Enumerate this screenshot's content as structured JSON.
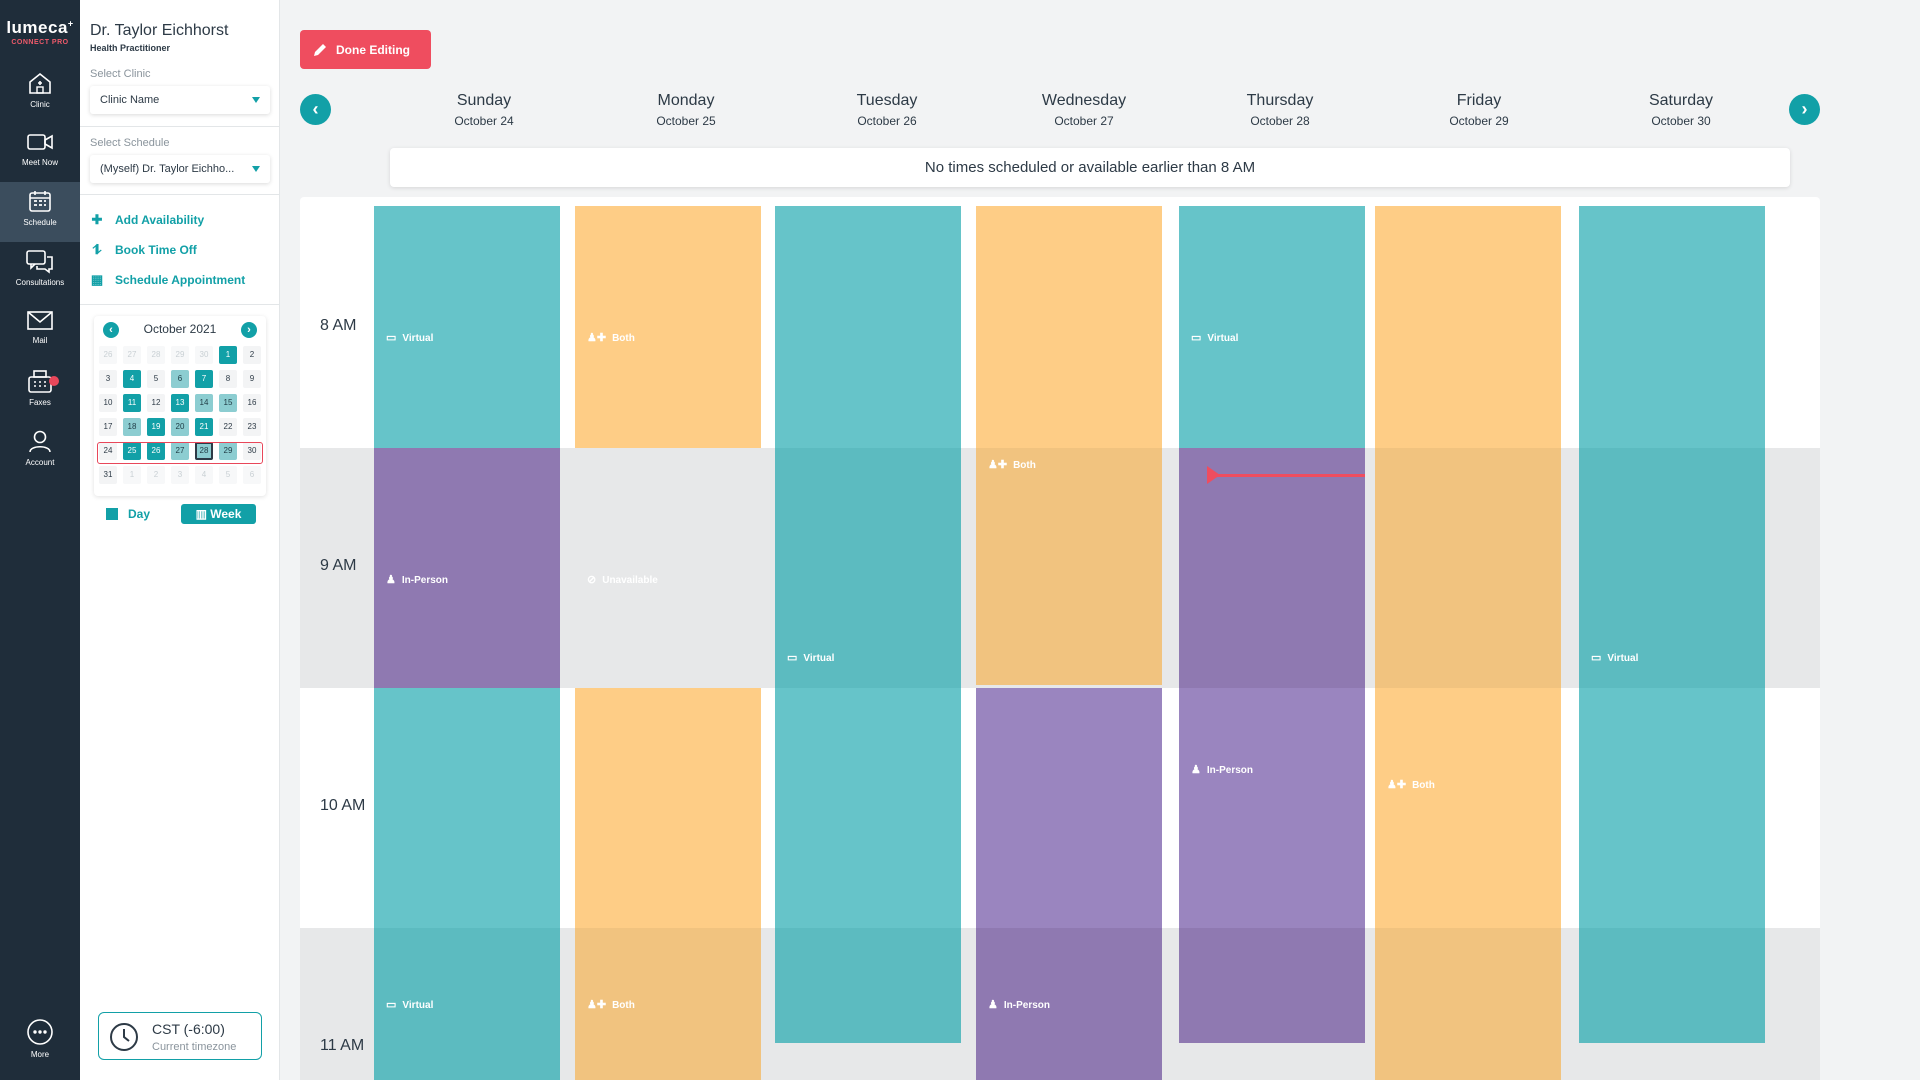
{
  "brand": {
    "name": "lumeca",
    "mark": "+",
    "sub": "CONNECT PRO"
  },
  "rail": [
    {
      "label": "Clinic",
      "icon": "clinic-icon"
    },
    {
      "label": "Meet Now",
      "icon": "video-icon"
    },
    {
      "label": "Schedule",
      "icon": "calendar-icon"
    },
    {
      "label": "Consultations",
      "icon": "chat-icon"
    },
    {
      "label": "Mail",
      "icon": "mail-icon"
    },
    {
      "label": "Faxes",
      "icon": "fax-icon"
    },
    {
      "label": "Account",
      "icon": "user-icon"
    },
    {
      "label": "More",
      "icon": "more-icon"
    }
  ],
  "panel": {
    "name": "Dr. Taylor Eichhorst",
    "role": "Health Practitioner",
    "clinic_label": "Select Clinic",
    "clinic_value": "Clinic Name",
    "schedule_label": "Select Schedule",
    "schedule_value": "(Myself) Dr. Taylor Eichho...",
    "actions": [
      "Add Availability",
      "Book Time Off",
      "Schedule Appointment"
    ],
    "month": "October 2021",
    "view_day": "Day",
    "view_week": "Week",
    "tz_value": "CST (-6:00)",
    "tz_label": "Current timezone"
  },
  "mini_calendar": [
    [
      "26",
      "27",
      "28",
      "29",
      "30",
      "1",
      "2"
    ],
    [
      "3",
      "4",
      "5",
      "6",
      "7",
      "8",
      "9"
    ],
    [
      "10",
      "11",
      "12",
      "13",
      "14",
      "15",
      "16"
    ],
    [
      "17",
      "18",
      "19",
      "20",
      "21",
      "22",
      "23"
    ],
    [
      "24",
      "25",
      "26",
      "27",
      "28",
      "29",
      "30"
    ],
    [
      "31",
      "1",
      "2",
      "3",
      "4",
      "5",
      "6"
    ]
  ],
  "main": {
    "done_label": "Done Editing",
    "notice": "No times scheduled or available earlier than 8 AM",
    "days": [
      {
        "name": "Sunday",
        "date": "October 24"
      },
      {
        "name": "Monday",
        "date": "October 25"
      },
      {
        "name": "Tuesday",
        "date": "October 26"
      },
      {
        "name": "Wednesday",
        "date": "October 27"
      },
      {
        "name": "Thursday",
        "date": "October 28"
      },
      {
        "name": "Friday",
        "date": "October 29"
      },
      {
        "name": "Saturday",
        "date": "October 30"
      }
    ],
    "times": [
      "8 AM",
      "9 AM",
      "10 AM",
      "11 AM"
    ],
    "block_labels": {
      "virtual": "Virtual",
      "both": "Both",
      "inperson": "In-Person",
      "unavailable": "Unavailable"
    }
  },
  "colors": {
    "teal": "#12a0a7",
    "red": "#ef4d5f",
    "virtual": "#66c4c9",
    "both": "#fecd86",
    "inperson": "#8f79b1",
    "unavailable": "#777777"
  }
}
